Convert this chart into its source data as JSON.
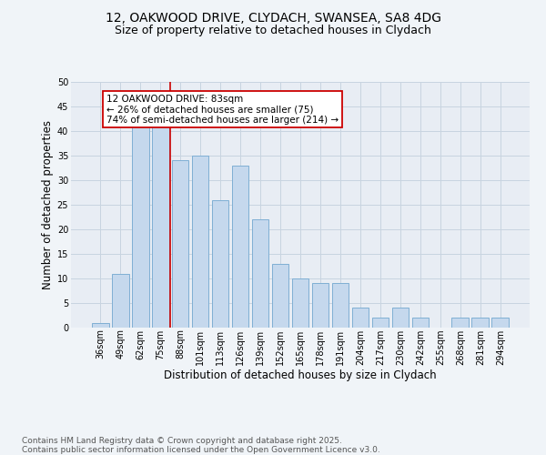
{
  "title_line1": "12, OAKWOOD DRIVE, CLYDACH, SWANSEA, SA8 4DG",
  "title_line2": "Size of property relative to detached houses in Clydach",
  "xlabel": "Distribution of detached houses by size in Clydach",
  "ylabel": "Number of detached properties",
  "categories": [
    "36sqm",
    "49sqm",
    "62sqm",
    "75sqm",
    "88sqm",
    "101sqm",
    "113sqm",
    "126sqm",
    "139sqm",
    "152sqm",
    "165sqm",
    "178sqm",
    "191sqm",
    "204sqm",
    "217sqm",
    "230sqm",
    "242sqm",
    "255sqm",
    "268sqm",
    "281sqm",
    "294sqm"
  ],
  "values": [
    1,
    11,
    41,
    41,
    34,
    35,
    26,
    33,
    22,
    13,
    10,
    9,
    9,
    4,
    2,
    4,
    2,
    0,
    2,
    2,
    2
  ],
  "bar_color": "#c5d8ed",
  "bar_edge_color": "#7fafd4",
  "grid_color": "#c8d4e0",
  "background_color": "#e8edf4",
  "fig_background_color": "#f0f4f8",
  "vline_x_index": 3.5,
  "vline_color": "#cc0000",
  "annotation_box_text": "12 OAKWOOD DRIVE: 83sqm\n← 26% of detached houses are smaller (75)\n74% of semi-detached houses are larger (214) →",
  "annotation_box_color": "#cc0000",
  "ylim": [
    0,
    50
  ],
  "yticks": [
    0,
    5,
    10,
    15,
    20,
    25,
    30,
    35,
    40,
    45,
    50
  ],
  "footer_line1": "Contains HM Land Registry data © Crown copyright and database right 2025.",
  "footer_line2": "Contains public sector information licensed under the Open Government Licence v3.0.",
  "title_fontsize": 10,
  "subtitle_fontsize": 9,
  "axis_label_fontsize": 8.5,
  "tick_fontsize": 7,
  "footer_fontsize": 6.5,
  "ann_fontsize": 7.5
}
